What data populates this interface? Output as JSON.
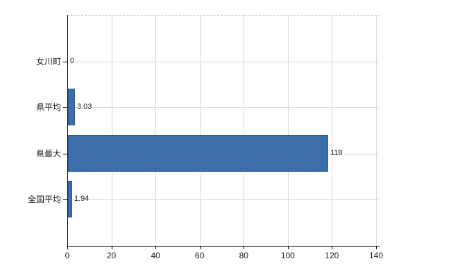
{
  "chart_data": {
    "type": "bar",
    "orientation": "horizontal",
    "title": "",
    "xlabel": "",
    "ylabel": "",
    "categories": [
      "女川町",
      "県平均",
      "県最大",
      "全国平均"
    ],
    "values": [
      0,
      3.03,
      118,
      1.94
    ],
    "value_labels": [
      "0",
      "3.03",
      "118",
      "1.94"
    ],
    "xlim": [
      0,
      140
    ],
    "x_ticks": [
      0,
      20,
      40,
      60,
      80,
      100,
      120,
      140
    ],
    "grid": true,
    "legend": "none",
    "colors": {
      "bar_fill": "#3b6eaa",
      "bar_border": "#2d5a8f",
      "gridline": "#d6d6d6",
      "axis": "#000000",
      "text": "#1a1a1a",
      "background": "#ffffff"
    }
  }
}
